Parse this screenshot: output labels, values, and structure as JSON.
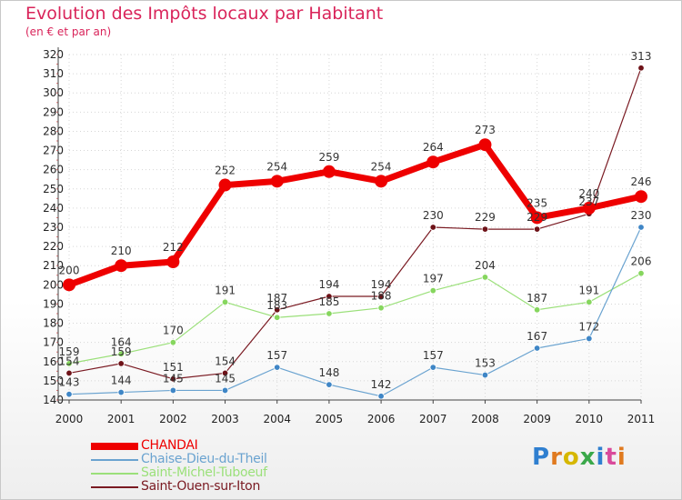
{
  "title": "Evolution des Impôts locaux par Habitant",
  "subtitle": "(en € et par an)",
  "logo": {
    "text": "Proxiti",
    "letter_colors": [
      "#2f7fd0",
      "#e07a1f",
      "#d6b700",
      "#3aa84a",
      "#2f7fd0",
      "#d94a9b",
      "#e07a1f"
    ]
  },
  "chart_data": {
    "type": "line",
    "title": "Evolution des Impôts locaux par Habitant",
    "subtitle": "(en € et par an)",
    "xlabel": "",
    "ylabel": "",
    "ylim": [
      140,
      320
    ],
    "y_ticks": [
      140,
      150,
      160,
      170,
      180,
      190,
      200,
      210,
      220,
      230,
      240,
      250,
      260,
      270,
      280,
      290,
      300,
      310,
      320
    ],
    "grid": true,
    "legend_position": "bottom-left",
    "categories": [
      "2000",
      "2001",
      "2002",
      "2003",
      "2004",
      "2005",
      "2006",
      "2007",
      "2008",
      "2009",
      "2010",
      "2011"
    ],
    "series": [
      {
        "name": "Saint-Ouen-sur-Iton",
        "color": "#7a1a22",
        "marker": "#6e1218",
        "values": [
          154,
          159,
          151,
          154,
          187,
          194,
          194,
          230,
          229,
          229,
          237,
          313
        ]
      },
      {
        "name": "Saint-Michel-Tuboeuf",
        "color": "#9be07a",
        "marker": "#86d65e",
        "values": [
          159,
          164,
          170,
          191,
          183,
          185,
          188,
          197,
          204,
          187,
          191,
          206
        ]
      },
      {
        "name": "Chaise-Dieu-du-Theil",
        "color": "#6aa3d0",
        "marker": "#3f86c6",
        "values": [
          143,
          144,
          145,
          145,
          157,
          148,
          142,
          157,
          153,
          167,
          172,
          230
        ]
      },
      {
        "name": "CHANDAI",
        "color": "#ee0000",
        "marker": "#ee0000",
        "values": [
          200,
          210,
          212,
          252,
          254,
          259,
          254,
          264,
          273,
          235,
          240,
          246
        ]
      }
    ],
    "legend_order": [
      "CHANDAI",
      "Chaise-Dieu-du-Theil",
      "Saint-Michel-Tuboeuf",
      "Saint-Ouen-sur-Iton"
    ]
  }
}
